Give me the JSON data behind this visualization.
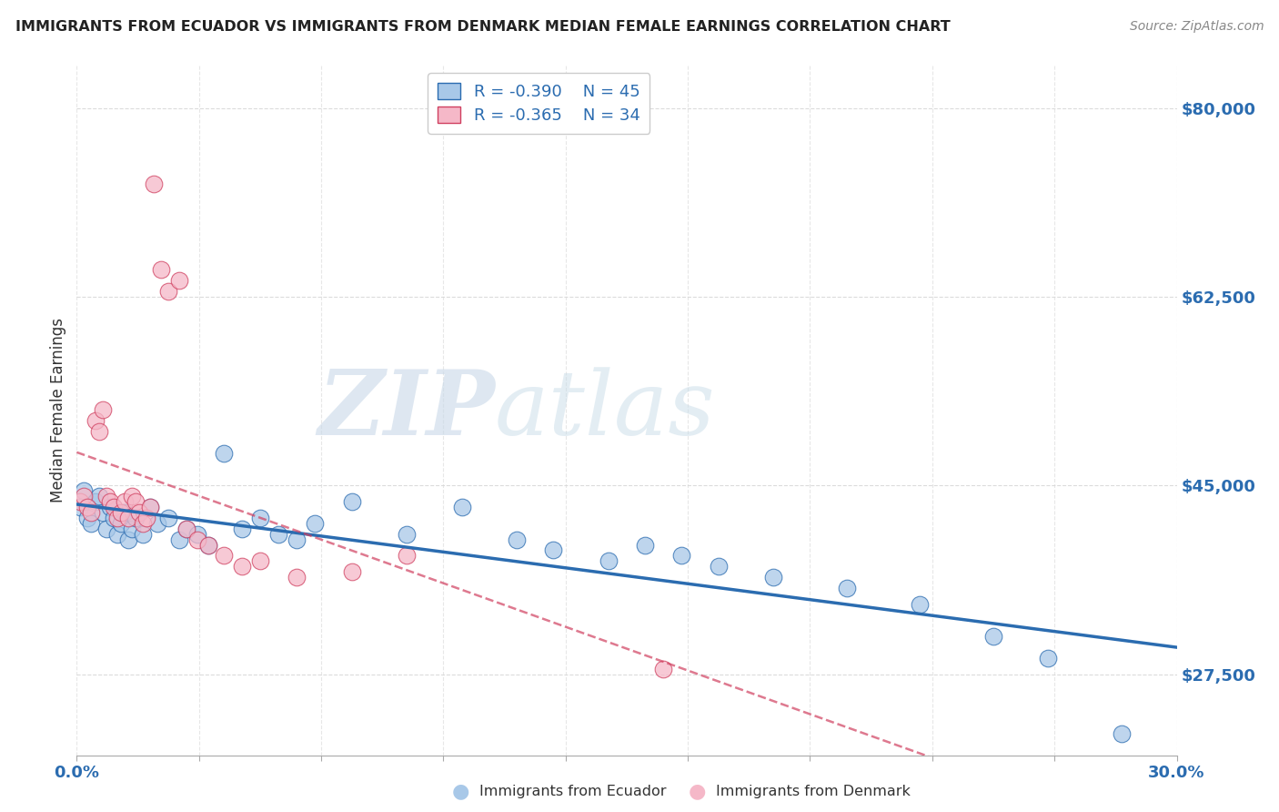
{
  "title": "IMMIGRANTS FROM ECUADOR VS IMMIGRANTS FROM DENMARK MEDIAN FEMALE EARNINGS CORRELATION CHART",
  "source": "Source: ZipAtlas.com",
  "ylabel": "Median Female Earnings",
  "xlim": [
    0.0,
    0.3
  ],
  "yticks": [
    27500,
    45000,
    62500,
    80000
  ],
  "ytick_labels": [
    "$27,500",
    "$45,000",
    "$62,500",
    "$80,000"
  ],
  "ecuador_color": "#a8c8e8",
  "denmark_color": "#f5b8c8",
  "ecuador_line_color": "#2b6cb0",
  "denmark_line_color": "#d04060",
  "background_color": "#ffffff",
  "grid_color": "#d8d8d8",
  "watermark_zip": "ZIP",
  "watermark_atlas": "atlas",
  "legend_r1": "R = -0.390",
  "legend_n1": "N = 45",
  "legend_r2": "R = -0.365",
  "legend_n2": "N = 34",
  "ecuador_x": [
    0.001,
    0.002,
    0.003,
    0.004,
    0.005,
    0.006,
    0.007,
    0.008,
    0.009,
    0.01,
    0.011,
    0.012,
    0.013,
    0.014,
    0.015,
    0.016,
    0.018,
    0.02,
    0.022,
    0.025,
    0.028,
    0.03,
    0.033,
    0.036,
    0.04,
    0.045,
    0.05,
    0.055,
    0.06,
    0.065,
    0.075,
    0.09,
    0.105,
    0.12,
    0.13,
    0.145,
    0.155,
    0.165,
    0.175,
    0.19,
    0.21,
    0.23,
    0.25,
    0.265,
    0.285
  ],
  "ecuador_y": [
    43000,
    44500,
    42000,
    41500,
    43500,
    44000,
    42500,
    41000,
    43000,
    42000,
    40500,
    41500,
    42500,
    40000,
    41000,
    42000,
    40500,
    43000,
    41500,
    42000,
    40000,
    41000,
    40500,
    39500,
    48000,
    41000,
    42000,
    40500,
    40000,
    41500,
    43500,
    40500,
    43000,
    40000,
    39000,
    38000,
    39500,
    38500,
    37500,
    36500,
    35500,
    34000,
    31000,
    29000,
    22000
  ],
  "denmark_x": [
    0.001,
    0.002,
    0.003,
    0.004,
    0.005,
    0.006,
    0.007,
    0.008,
    0.009,
    0.01,
    0.011,
    0.012,
    0.013,
    0.014,
    0.015,
    0.016,
    0.017,
    0.018,
    0.019,
    0.02,
    0.021,
    0.023,
    0.025,
    0.028,
    0.03,
    0.033,
    0.036,
    0.04,
    0.045,
    0.05,
    0.06,
    0.075,
    0.09,
    0.16
  ],
  "denmark_y": [
    43500,
    44000,
    43000,
    42500,
    51000,
    50000,
    52000,
    44000,
    43500,
    43000,
    42000,
    42500,
    43500,
    42000,
    44000,
    43500,
    42500,
    41500,
    42000,
    43000,
    73000,
    65000,
    63000,
    64000,
    41000,
    40000,
    39500,
    38500,
    37500,
    38000,
    36500,
    37000,
    38500,
    28000
  ]
}
